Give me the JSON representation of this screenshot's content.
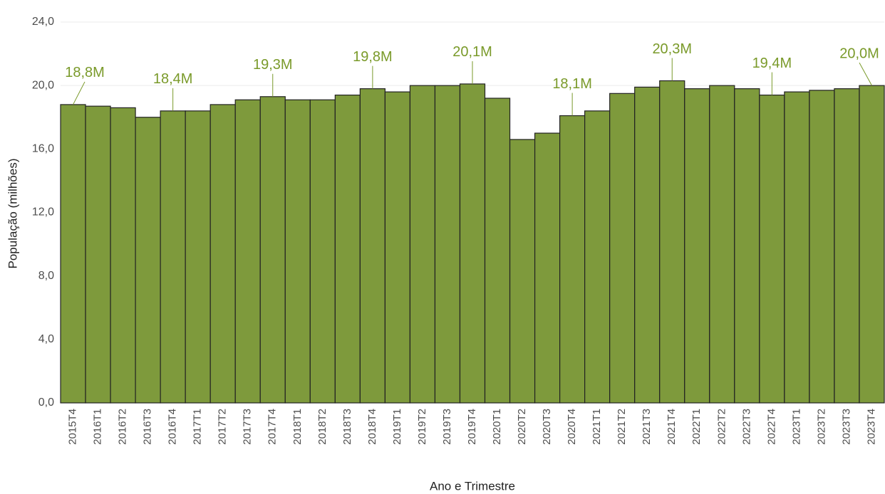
{
  "chart_data": {
    "type": "bar",
    "x_label": "Ano e Trimestre",
    "y_label": "População (milhões)",
    "categories": [
      "2015T4",
      "2016T1",
      "2016T2",
      "2016T3",
      "2016T4",
      "2017T1",
      "2017T2",
      "2017T3",
      "2017T4",
      "2018T1",
      "2018T2",
      "2018T3",
      "2018T4",
      "2019T1",
      "2019T2",
      "2019T3",
      "2019T4",
      "2020T1",
      "2020T2",
      "2020T3",
      "2020T4",
      "2021T1",
      "2021T2",
      "2021T3",
      "2021T4",
      "2022T1",
      "2022T2",
      "2022T3",
      "2022T4",
      "2023T1",
      "2023T2",
      "2023T3",
      "2023T4"
    ],
    "values": [
      18.8,
      18.7,
      18.6,
      18.0,
      18.4,
      18.4,
      18.8,
      19.1,
      19.3,
      19.1,
      19.1,
      19.4,
      19.8,
      19.6,
      20.0,
      20.0,
      20.1,
      19.2,
      16.6,
      17.0,
      18.1,
      18.4,
      19.5,
      19.9,
      20.3,
      19.8,
      20.0,
      19.8,
      19.4,
      19.6,
      19.7,
      19.8,
      20.0
    ],
    "value_labels": [
      "18,8M",
      null,
      null,
      null,
      "18,4M",
      null,
      null,
      null,
      "19,3M",
      null,
      null,
      null,
      "19,8M",
      null,
      null,
      null,
      "20,1M",
      null,
      null,
      null,
      "18,1M",
      null,
      null,
      null,
      "20,3M",
      null,
      null,
      null,
      "19,4M",
      null,
      null,
      null,
      "20,0M"
    ],
    "color": "#7e9a3c",
    "label_color": "#7a9a2a",
    "ylim": [
      0,
      24
    ],
    "yticks": [
      {
        "value": 0,
        "label": "0,0"
      },
      {
        "value": 4,
        "label": "4,0"
      },
      {
        "value": 8,
        "label": "8,0"
      },
      {
        "value": 12,
        "label": "12,0"
      },
      {
        "value": 16,
        "label": "16,0"
      },
      {
        "value": 20,
        "label": "20,0"
      },
      {
        "value": 24,
        "label": "24,0"
      }
    ],
    "grid": true
  }
}
